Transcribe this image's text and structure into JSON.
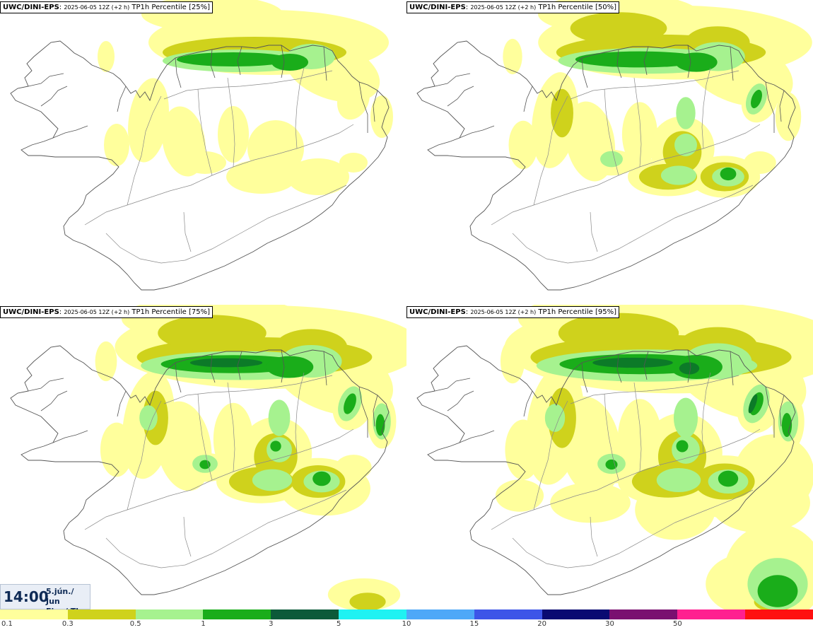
{
  "panels": [
    {
      "model": "UWC/DINI-EPS",
      "run": "2025-06-05 12Z (+2 h)",
      "product": "TP1h Percentile [25%]",
      "level": 0
    },
    {
      "model": "UWC/DINI-EPS",
      "run": "2025-06-05 12Z (+2 h)",
      "product": "TP1h Percentile [50%]",
      "level": 1
    },
    {
      "model": "UWC/DINI-EPS",
      "run": "2025-06-05 12Z (+2 h)",
      "product": "TP1h Percentile [75%]",
      "level": 2
    },
    {
      "model": "UWC/DINI-EPS",
      "run": "2025-06-05 12Z (+2 h)",
      "product": "TP1h Percentile [95%]",
      "level": 3
    }
  ],
  "time": {
    "clock": "14:00",
    "date_line1": "5.jún./ Jun",
    "date_line2": "Fim./ Thu"
  },
  "legend": {
    "labels": [
      "0.1",
      "0.3",
      "0.5",
      "1",
      "3",
      "5",
      "10",
      "15",
      "20",
      "30",
      "50"
    ],
    "colors": [
      "#ffff9c",
      "#cfd21c",
      "#a6f28f",
      "#1aad1a",
      "#0c5a3a",
      "#1ff2f2",
      "#4ea8f8",
      "#3d55e8",
      "#0a0a72",
      "#7a1070",
      "#ff2090",
      "#ff1010"
    ]
  },
  "field_colors": {
    "light_yellow": "#ffff9c",
    "olive": "#cfd21c",
    "light_green": "#a6f28f",
    "green": "#1aad1a",
    "dark_green": "#0c7a28",
    "coast": "#555555"
  }
}
